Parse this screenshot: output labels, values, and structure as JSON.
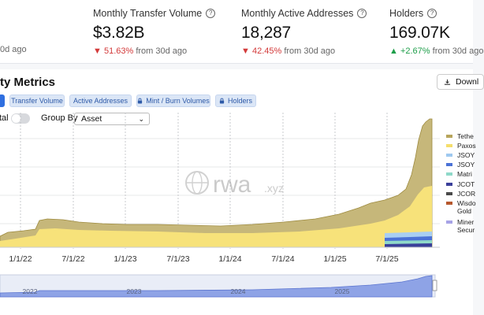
{
  "stats": {
    "partial_text": "0d ago",
    "items": [
      {
        "label": "Monthly Transfer Volume",
        "value": "$3.82B",
        "arrow": "▼",
        "change": "51.63%",
        "suffix": "from 30d ago",
        "dir": "down"
      },
      {
        "label": "Monthly Active Addresses",
        "value": "18,287",
        "arrow": "▼",
        "change": "42.45%",
        "suffix": "from 30d ago",
        "dir": "down"
      },
      {
        "label": "Holders",
        "value": "169.07K",
        "arrow": "▲",
        "change": "+2.67%",
        "suffix": "from 30d ago",
        "dir": "up"
      }
    ]
  },
  "panel": {
    "title": "ty Metrics",
    "download_label": "Downl",
    "tabs": [
      "Transfer Volume",
      "Active Addresses",
      "Mint / Burn Volumes",
      "Holders"
    ],
    "toggle_label": "tal",
    "group_by_label": "Group By",
    "group_by_value": "Asset"
  },
  "watermark": {
    "main": "rwa",
    "suffix": ".xyz"
  },
  "chart_data": {
    "type": "area",
    "x_ticks": [
      "1/1/22",
      "7/1/22",
      "1/1/23",
      "7/1/23",
      "1/1/24",
      "7/1/24",
      "1/1/25",
      "7/1/25"
    ],
    "navigator_ticks": [
      "2022",
      "2023",
      "2024",
      "2025"
    ],
    "legend": [
      {
        "name": "Tethe",
        "color": "#b7a55c"
      },
      {
        "name": "Paxos",
        "color": "#f5de6c"
      },
      {
        "name": "JSOY",
        "color": "#9fc9f0"
      },
      {
        "name": "JSOY",
        "color": "#4b72d6"
      },
      {
        "name": "Matri",
        "color": "#8fd9c9"
      },
      {
        "name": "JCOT",
        "color": "#3a3f9a"
      },
      {
        "name": "JCOR",
        "color": "#4a4a4a"
      },
      {
        "name": "Wisdo Gold",
        "color": "#b6582d"
      },
      {
        "name": "Miner Secur",
        "color": "#a7a3e6"
      }
    ]
  }
}
